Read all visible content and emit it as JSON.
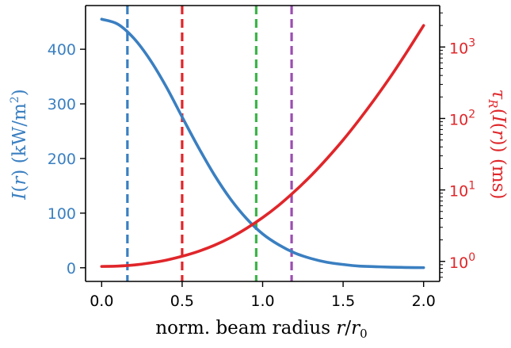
{
  "chart_data": {
    "type": "line",
    "xlabel": "norm. beam radius r/r₀",
    "ylabel_left": "I(r)  (kW/m²)",
    "ylabel_right": "τ_R(I(r))  (ms)",
    "xlim": [
      -0.1,
      2.1
    ],
    "ylim_left": [
      -25,
      480
    ],
    "ylim_right_log10": [
      -0.28,
      3.58
    ],
    "y_right_scale": "log",
    "grid": false,
    "legend": "none",
    "x_ticks": [
      0.0,
      0.5,
      1.0,
      1.5,
      2.0
    ],
    "x_tick_labels": [
      "0.0",
      "0.5",
      "1.0",
      "1.5",
      "2.0"
    ],
    "y_left_ticks": [
      0,
      100,
      200,
      300,
      400
    ],
    "y_left_tick_labels": [
      "0",
      "100",
      "200",
      "300",
      "400"
    ],
    "y_right_ticks": [
      1,
      10,
      100,
      1000
    ],
    "y_right_tick_labels": [
      {
        "base": "10",
        "exp": "0"
      },
      {
        "base": "10",
        "exp": "1"
      },
      {
        "base": "10",
        "exp": "2"
      },
      {
        "base": "10",
        "exp": "3"
      }
    ],
    "series": [
      {
        "axis": "left",
        "color": "#3a7fc1",
        "x": [
          0,
          0.1,
          0.2,
          0.3,
          0.4,
          0.5,
          0.6,
          0.7,
          0.8,
          0.9,
          1.0,
          1.1,
          1.2,
          1.3,
          1.4,
          1.5,
          1.6,
          1.7,
          1.8,
          1.9,
          2.0
        ],
        "y": [
          455,
          446,
          420,
          381,
          332,
          276,
          221,
          170,
          126,
          90,
          62,
          42,
          27,
          17,
          10,
          6,
          3,
          2,
          1,
          0.5,
          0.2
        ]
      },
      {
        "axis": "right",
        "color": "#e0262a",
        "x": [
          0,
          0.1,
          0.2,
          0.3,
          0.4,
          0.5,
          0.6,
          0.7,
          0.8,
          0.9,
          1.0,
          1.1,
          1.2,
          1.3,
          1.4,
          1.5,
          1.6,
          1.7,
          1.8,
          1.9,
          2.0
        ],
        "y": [
          0.85,
          0.86,
          0.89,
          0.95,
          1.04,
          1.18,
          1.38,
          1.68,
          2.15,
          2.9,
          4.1,
          6.1,
          9.6,
          15.8,
          27.5,
          50,
          96,
          192,
          400,
          880,
          2000
        ]
      }
    ],
    "vlines": [
      {
        "x": 0.16,
        "color": "#3a7fc1"
      },
      {
        "x": 0.5,
        "color": "#e0262a"
      },
      {
        "x": 0.96,
        "color": "#3fb24a"
      },
      {
        "x": 1.18,
        "color": "#9a4fb0"
      }
    ],
    "colors": {
      "left_axis": "#3a7fc1",
      "right_axis": "#e0262a",
      "frame": "#000000"
    }
  }
}
